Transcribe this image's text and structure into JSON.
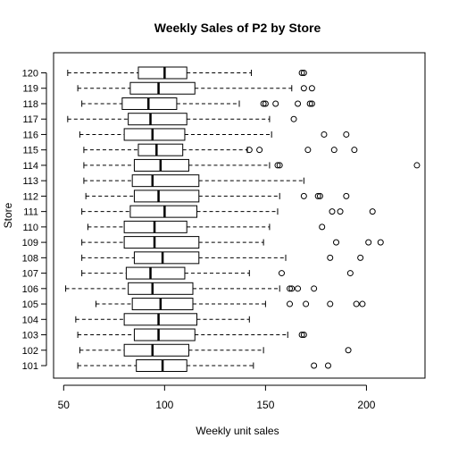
{
  "chart_data": {
    "type": "boxplot",
    "orientation": "horizontal",
    "title": "Weekly Sales of P2 by Store",
    "xlabel": "Weekly unit sales",
    "ylabel": "Store",
    "xlim": [
      45,
      229
    ],
    "xticks": [
      50,
      100,
      150,
      200
    ],
    "grid": false,
    "legend": "none",
    "colors": {
      "box_fill": "#ffffff",
      "stroke": "#000000",
      "median": "#000000"
    },
    "stores": [
      {
        "label": "101",
        "lower_whisker": 57,
        "q1": 86,
        "median": 99,
        "q3": 111,
        "upper_whisker": 144,
        "outliers": [
          174,
          181
        ]
      },
      {
        "label": "102",
        "lower_whisker": 58,
        "q1": 80,
        "median": 94,
        "q3": 112,
        "upper_whisker": 149,
        "outliers": [
          191
        ]
      },
      {
        "label": "103",
        "lower_whisker": 57,
        "q1": 85,
        "median": 97,
        "q3": 115,
        "upper_whisker": 161,
        "outliers": [
          168,
          169
        ]
      },
      {
        "label": "104",
        "lower_whisker": 56,
        "q1": 80,
        "median": 97,
        "q3": 116,
        "upper_whisker": 142,
        "outliers": []
      },
      {
        "label": "105",
        "lower_whisker": 66,
        "q1": 84,
        "median": 98,
        "q3": 114,
        "upper_whisker": 150,
        "outliers": [
          162,
          170,
          182,
          195,
          198
        ]
      },
      {
        "label": "106",
        "lower_whisker": 51,
        "q1": 82,
        "median": 94,
        "q3": 114,
        "upper_whisker": 157,
        "outliers": [
          162,
          163,
          166,
          174
        ]
      },
      {
        "label": "107",
        "lower_whisker": 59,
        "q1": 81,
        "median": 93,
        "q3": 110,
        "upper_whisker": 142,
        "outliers": [
          158,
          192
        ]
      },
      {
        "label": "108",
        "lower_whisker": 59,
        "q1": 85,
        "median": 99,
        "q3": 117,
        "upper_whisker": 160,
        "outliers": [
          182,
          197
        ]
      },
      {
        "label": "109",
        "lower_whisker": 59,
        "q1": 80,
        "median": 95,
        "q3": 117,
        "upper_whisker": 149,
        "outliers": [
          185,
          201,
          207
        ]
      },
      {
        "label": "110",
        "lower_whisker": 62,
        "q1": 80,
        "median": 95,
        "q3": 111,
        "upper_whisker": 152,
        "outliers": [
          178
        ]
      },
      {
        "label": "111",
        "lower_whisker": 59,
        "q1": 83,
        "median": 100,
        "q3": 116,
        "upper_whisker": 156,
        "outliers": [
          183,
          187,
          203
        ]
      },
      {
        "label": "112",
        "lower_whisker": 61,
        "q1": 85,
        "median": 97,
        "q3": 117,
        "upper_whisker": 157,
        "outliers": [
          169,
          176,
          177,
          190
        ]
      },
      {
        "label": "113",
        "lower_whisker": 60,
        "q1": 84,
        "median": 94,
        "q3": 117,
        "upper_whisker": 169,
        "outliers": []
      },
      {
        "label": "114",
        "lower_whisker": 60,
        "q1": 85,
        "median": 98,
        "q3": 112,
        "upper_whisker": 152,
        "outliers": [
          156,
          157,
          225
        ]
      },
      {
        "label": "115",
        "lower_whisker": 60,
        "q1": 87,
        "median": 96,
        "q3": 109,
        "upper_whisker": 141,
        "outliers": [
          142,
          147,
          171,
          184,
          194
        ]
      },
      {
        "label": "116",
        "lower_whisker": 58,
        "q1": 80,
        "median": 94,
        "q3": 110,
        "upper_whisker": 153,
        "outliers": [
          179,
          190
        ]
      },
      {
        "label": "117",
        "lower_whisker": 52,
        "q1": 82,
        "median": 93,
        "q3": 111,
        "upper_whisker": 152,
        "outliers": [
          164
        ]
      },
      {
        "label": "118",
        "lower_whisker": 59,
        "q1": 79,
        "median": 92,
        "q3": 106,
        "upper_whisker": 137,
        "outliers": [
          149,
          150,
          155,
          166,
          172,
          173
        ]
      },
      {
        "label": "119",
        "lower_whisker": 57,
        "q1": 83,
        "median": 97,
        "q3": 115,
        "upper_whisker": 163,
        "outliers": [
          169,
          173
        ]
      },
      {
        "label": "120",
        "lower_whisker": 52,
        "q1": 87,
        "median": 100,
        "q3": 111,
        "upper_whisker": 143,
        "outliers": [
          168,
          169
        ]
      }
    ]
  }
}
